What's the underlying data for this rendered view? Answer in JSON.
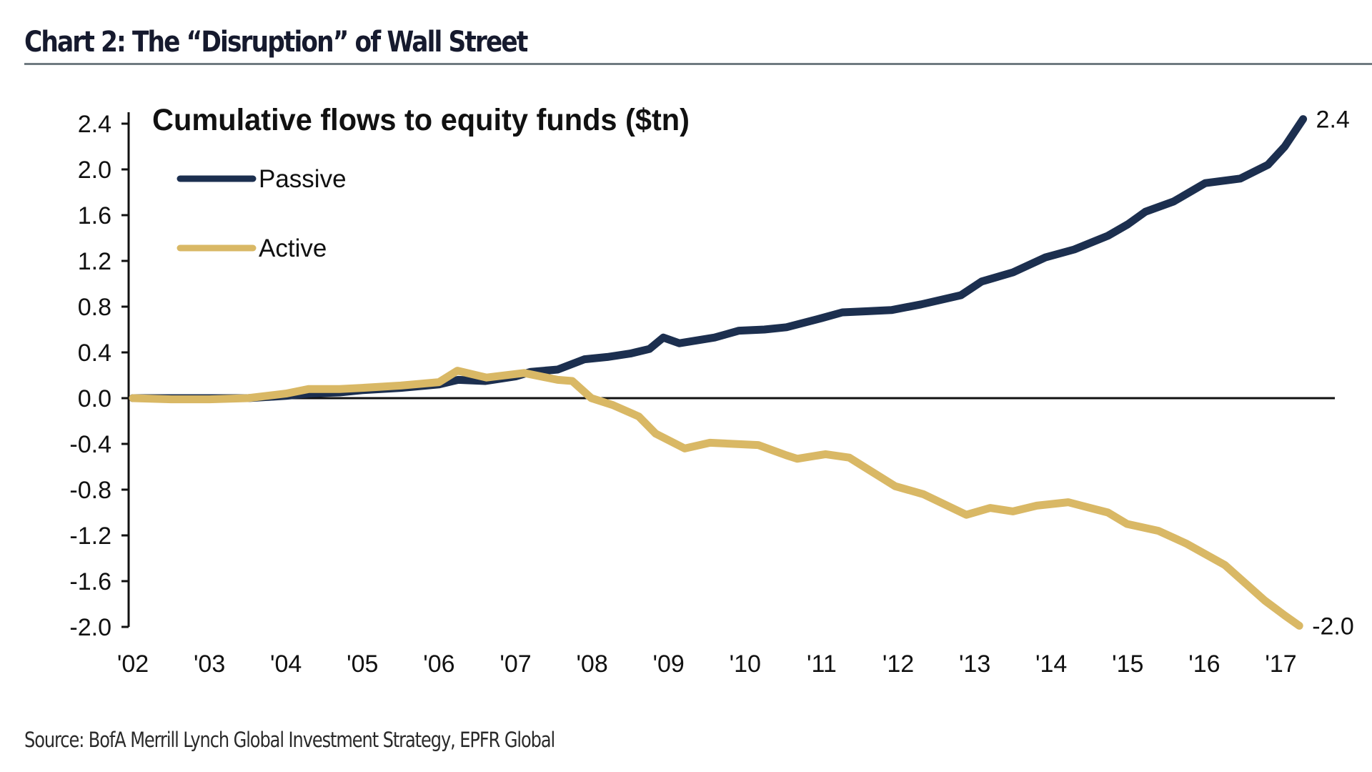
{
  "title": "Chart 2: The “Disruption” of Wall Street",
  "source": "Source: BofA Merrill Lynch Global Investment Strategy, EPFR Global",
  "chart_data": {
    "type": "line",
    "title": "Chart 2: The “Disruption” of Wall Street",
    "subtitle": "Cumulative flows to equity funds ($tn)",
    "xlabel": "",
    "ylabel": "",
    "xlim": [
      2002,
      2017.3
    ],
    "ylim": [
      -2.0,
      2.4
    ],
    "yticks": [
      2.4,
      2.0,
      1.6,
      1.2,
      0.8,
      0.4,
      0.0,
      -0.4,
      -0.8,
      -1.2,
      -1.6,
      -2.0
    ],
    "ytick_labels": [
      "2.4",
      "2.0",
      "1.6",
      "1.2",
      "0.8",
      "0.4",
      "0.0",
      "-0.4",
      "-0.8",
      "-1.2",
      "-1.6",
      "-2.0"
    ],
    "xticks": [
      2002,
      2003,
      2004,
      2005,
      2006,
      2007,
      2008,
      2009,
      2010,
      2011,
      2012,
      2013,
      2014,
      2015,
      2016,
      2017
    ],
    "xtick_labels": [
      "'02",
      "'03",
      "'04",
      "'05",
      "'06",
      "'07",
      "'08",
      "'09",
      "'10",
      "'11",
      "'12",
      "'13",
      "'14",
      "'15",
      "'16",
      "'17"
    ],
    "grid": false,
    "zero_line": true,
    "legend": {
      "position": "top-left",
      "entries": [
        "Passive",
        "Active"
      ]
    },
    "series": [
      {
        "name": "Passive",
        "color": "#1c2f4f",
        "end_label": "2.4",
        "x": [
          2002.0,
          2002.5,
          2003.0,
          2003.5,
          2004.0,
          2004.3,
          2004.7,
          2005.0,
          2005.5,
          2006.0,
          2006.25,
          2006.6,
          2007.0,
          2007.2,
          2007.55,
          2007.9,
          2008.2,
          2008.5,
          2008.75,
          2008.93,
          2009.14,
          2009.6,
          2009.92,
          2010.25,
          2010.54,
          2011.0,
          2011.27,
          2011.6,
          2011.91,
          2012.3,
          2012.82,
          2013.09,
          2013.5,
          2013.92,
          2014.3,
          2014.74,
          2015.0,
          2015.23,
          2015.6,
          2016.01,
          2016.47,
          2016.83,
          2017.05,
          2017.29
        ],
        "values": [
          0.0,
          0.0,
          0.0,
          0.0,
          0.02,
          0.04,
          0.05,
          0.07,
          0.09,
          0.12,
          0.16,
          0.15,
          0.19,
          0.23,
          0.25,
          0.34,
          0.36,
          0.39,
          0.43,
          0.53,
          0.48,
          0.53,
          0.59,
          0.6,
          0.62,
          0.7,
          0.75,
          0.76,
          0.77,
          0.82,
          0.9,
          1.02,
          1.1,
          1.23,
          1.3,
          1.42,
          1.52,
          1.63,
          1.72,
          1.88,
          1.92,
          2.04,
          2.2,
          2.44
        ]
      },
      {
        "name": "Active",
        "color": "#d9b865",
        "end_label": "-2.0",
        "x": [
          2002.0,
          2002.5,
          2003.0,
          2003.5,
          2004.0,
          2004.3,
          2004.7,
          2005.0,
          2005.5,
          2006.0,
          2006.24,
          2006.62,
          2007.11,
          2007.55,
          2007.74,
          2007.99,
          2008.27,
          2008.61,
          2008.83,
          2009.21,
          2009.54,
          2010.17,
          2010.54,
          2010.68,
          2011.05,
          2011.36,
          2011.96,
          2012.33,
          2012.89,
          2013.2,
          2013.5,
          2013.81,
          2014.22,
          2014.74,
          2014.99,
          2015.4,
          2015.76,
          2016.27,
          2016.79,
          2017.05,
          2017.24
        ],
        "values": [
          0.0,
          -0.01,
          -0.01,
          0.0,
          0.04,
          0.08,
          0.08,
          0.09,
          0.11,
          0.14,
          0.24,
          0.18,
          0.22,
          0.16,
          0.15,
          0.0,
          -0.06,
          -0.16,
          -0.31,
          -0.44,
          -0.39,
          -0.41,
          -0.5,
          -0.53,
          -0.49,
          -0.52,
          -0.77,
          -0.84,
          -1.02,
          -0.96,
          -0.99,
          -0.94,
          -0.91,
          -1.0,
          -1.1,
          -1.16,
          -1.27,
          -1.46,
          -1.77,
          -1.9,
          -1.99
        ]
      }
    ]
  }
}
